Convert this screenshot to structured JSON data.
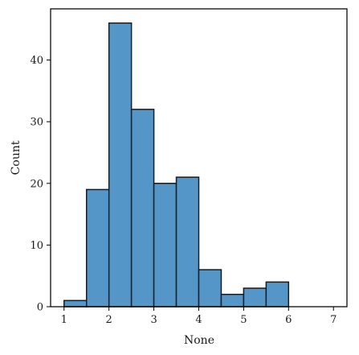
{
  "chart_data": {
    "type": "bar",
    "subtype": "histogram",
    "title": "",
    "xlabel": "None",
    "ylabel": "Count",
    "bin_edges": [
      1.0,
      1.5,
      2.0,
      2.5,
      3.0,
      3.5,
      4.0,
      4.5,
      5.0,
      5.5,
      6.0,
      6.5,
      7.0
    ],
    "values": [
      1,
      19,
      46,
      32,
      20,
      21,
      6,
      2,
      3,
      4,
      0,
      0
    ],
    "xlim": [
      0.7,
      7.3
    ],
    "ylim": [
      0,
      48.3
    ],
    "x_ticks": [
      1,
      2,
      3,
      4,
      5,
      6,
      7
    ],
    "y_ticks": [
      0,
      10,
      20,
      30,
      40
    ],
    "bar_color": "#5496c8",
    "edge_color": "#1a1a1a",
    "grid": false,
    "legend": "none"
  }
}
